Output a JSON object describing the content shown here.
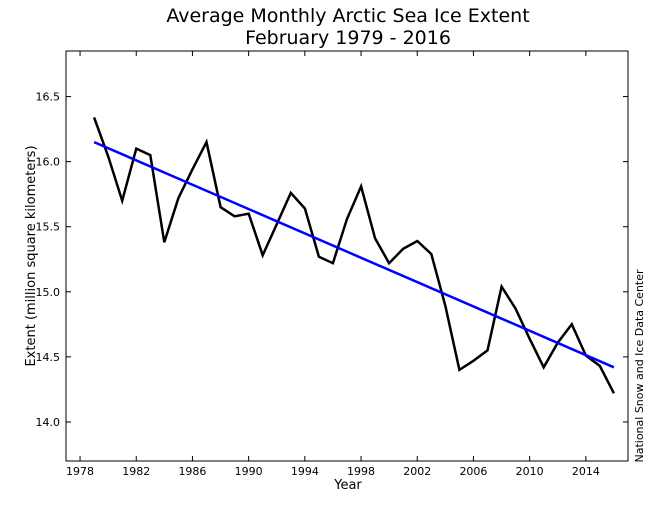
{
  "chart_data": {
    "type": "line",
    "title": "Average Monthly Arctic Sea Ice Extent",
    "subtitle": "February 1979 - 2016",
    "xlabel": "Year",
    "ylabel": "Extent (million square kilometers)",
    "credit": "National Snow and Ice Data Center",
    "xlim": [
      1977,
      2017
    ],
    "ylim": [
      13.7,
      16.85
    ],
    "x_ticks": [
      "1978",
      "1982",
      "1986",
      "1990",
      "1994",
      "1998",
      "2002",
      "2006",
      "2010",
      "2014"
    ],
    "y_ticks": [
      "14.0",
      "14.5",
      "15.0",
      "15.5",
      "16.0",
      "16.5"
    ],
    "grid": false,
    "series": [
      {
        "color": "#000000",
        "x": [
          1979,
          1980,
          1981,
          1982,
          1983,
          1984,
          1985,
          1986,
          1987,
          1988,
          1989,
          1990,
          1991,
          1992,
          1993,
          1994,
          1995,
          1996,
          1997,
          1998,
          1999,
          2000,
          2001,
          2002,
          2003,
          2004,
          2005,
          2006,
          2007,
          2008,
          2009,
          2010,
          2011,
          2012,
          2013,
          2014,
          2015,
          2016
        ],
        "values": [
          16.34,
          16.04,
          15.7,
          16.1,
          16.05,
          15.38,
          15.72,
          15.94,
          16.15,
          15.65,
          15.58,
          15.6,
          15.28,
          15.52,
          15.76,
          15.64,
          15.27,
          15.22,
          15.56,
          15.81,
          15.41,
          15.22,
          15.33,
          15.39,
          15.29,
          14.89,
          14.4,
          14.47,
          14.55,
          15.04,
          14.87,
          14.64,
          14.42,
          14.61,
          14.75,
          14.51,
          14.43,
          14.22
        ]
      },
      {
        "color": "#0000ff",
        "x": [
          1979,
          2016
        ],
        "values": [
          16.15,
          14.42
        ]
      }
    ]
  }
}
